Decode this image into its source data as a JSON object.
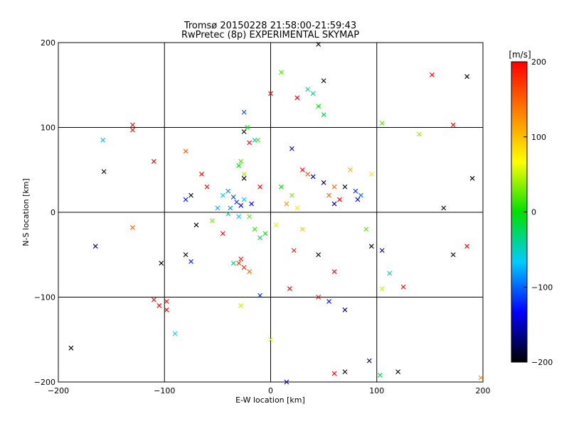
{
  "chart_data": {
    "type": "scatter",
    "title": "Tromsø 20150228 21:58:00-21:59:43",
    "subtitle": "RwPretec (8p) EXPERIMENTAL SKYMAP",
    "xlabel": "E-W location [km]",
    "ylabel": "N-S location [km]",
    "xlim": [
      -200,
      200
    ],
    "ylim": [
      -200,
      200
    ],
    "xticks": [
      -200,
      -100,
      0,
      100,
      200
    ],
    "yticks": [
      -200,
      -100,
      0,
      100,
      200
    ],
    "xticklabels": [
      "−200",
      "−100",
      "0",
      "100",
      "200"
    ],
    "yticklabels": [
      "−200",
      "−100",
      "0",
      "100",
      "200"
    ],
    "grid": true,
    "colorbar": {
      "label": "[m/s]",
      "vmin": -200,
      "vmax": 200,
      "ticks": [
        200,
        100,
        0,
        -100,
        -200
      ],
      "ticklabels": [
        "200",
        "100",
        "0",
        "−100",
        "−200"
      ],
      "colormap": [
        "#000000",
        "#0000ff",
        "#00ccff",
        "#00e000",
        "#ffff00",
        "#ff8000",
        "#ff0000"
      ]
    },
    "marker_legend": {
      "small_dot": "dot",
      "large_cross": "x"
    },
    "points": [
      {
        "x": -32,
        "y": 12,
        "v": -120,
        "m": "x"
      },
      {
        "x": -28,
        "y": 8,
        "v": -140,
        "m": "x"
      },
      {
        "x": -35,
        "y": 18,
        "v": -110,
        "m": "x"
      },
      {
        "x": -38,
        "y": 5,
        "v": -90,
        "m": "x"
      },
      {
        "x": -25,
        "y": 15,
        "v": -60,
        "m": "x"
      },
      {
        "x": -40,
        "y": -2,
        "v": -30,
        "m": "x"
      },
      {
        "x": -20,
        "y": -5,
        "v": 20,
        "m": "x"
      },
      {
        "x": -15,
        "y": -20,
        "v": 10,
        "m": "x"
      },
      {
        "x": -10,
        "y": -30,
        "v": -20,
        "m": "x"
      },
      {
        "x": -5,
        "y": -25,
        "v": 0,
        "m": "x"
      },
      {
        "x": 5,
        "y": -15,
        "v": 60,
        "m": "x"
      },
      {
        "x": -30,
        "y": -60,
        "v": 170,
        "m": "x"
      },
      {
        "x": -25,
        "y": -65,
        "v": 180,
        "m": "x"
      },
      {
        "x": -20,
        "y": -70,
        "v": 150,
        "m": "x"
      },
      {
        "x": -28,
        "y": -55,
        "v": 190,
        "m": "x"
      },
      {
        "x": -45,
        "y": -25,
        "v": 200,
        "m": "x"
      },
      {
        "x": -55,
        "y": -10,
        "v": 30,
        "m": "x"
      },
      {
        "x": 10,
        "y": 30,
        "v": 0,
        "m": "x"
      },
      {
        "x": 20,
        "y": 20,
        "v": 30,
        "m": "x"
      },
      {
        "x": 25,
        "y": 5,
        "v": 80,
        "m": "x"
      },
      {
        "x": 30,
        "y": -20,
        "v": 100,
        "m": "x"
      },
      {
        "x": 15,
        "y": 10,
        "v": 120,
        "m": "x"
      },
      {
        "x": 22,
        "y": -45,
        "v": 190,
        "m": "x"
      },
      {
        "x": 35,
        "y": 45,
        "v": 160,
        "m": "x"
      },
      {
        "x": 40,
        "y": 42,
        "v": -150,
        "m": "x"
      },
      {
        "x": 50,
        "y": 35,
        "v": -180,
        "m": "x"
      },
      {
        "x": 55,
        "y": 20,
        "v": 150,
        "m": "x"
      },
      {
        "x": 60,
        "y": 10,
        "v": -160,
        "m": "x"
      },
      {
        "x": 70,
        "y": 30,
        "v": -200,
        "m": "x"
      },
      {
        "x": 80,
        "y": 25,
        "v": -120,
        "m": "x"
      },
      {
        "x": 85,
        "y": 20,
        "v": -100,
        "m": "x"
      },
      {
        "x": 82,
        "y": 15,
        "v": -130,
        "m": "x"
      },
      {
        "x": 90,
        "y": -20,
        "v": 20,
        "m": "x"
      },
      {
        "x": 95,
        "y": -40,
        "v": -200,
        "m": "x"
      },
      {
        "x": 75,
        "y": 50,
        "v": 110,
        "m": "x"
      },
      {
        "x": 95,
        "y": 45,
        "v": 80,
        "m": "x"
      },
      {
        "x": 10,
        "y": 165,
        "v": 20,
        "m": "x"
      },
      {
        "x": 25,
        "y": 135,
        "v": 200,
        "m": "x"
      },
      {
        "x": 35,
        "y": 145,
        "v": -40,
        "m": "x"
      },
      {
        "x": 40,
        "y": 140,
        "v": -40,
        "m": "x"
      },
      {
        "x": 45,
        "y": 125,
        "v": 0,
        "m": "x"
      },
      {
        "x": 50,
        "y": 115,
        "v": -20,
        "m": "x"
      },
      {
        "x": 50,
        "y": 155,
        "v": -200,
        "m": "x"
      },
      {
        "x": 45,
        "y": 198,
        "v": -200,
        "m": "x"
      },
      {
        "x": 0,
        "y": 140,
        "v": 200,
        "m": "x"
      },
      {
        "x": -25,
        "y": 118,
        "v": -110,
        "m": "x"
      },
      {
        "x": -25,
        "y": 95,
        "v": -200,
        "m": "x"
      },
      {
        "x": -22,
        "y": 100,
        "v": 0,
        "m": "x"
      },
      {
        "x": -15,
        "y": 85,
        "v": -50,
        "m": "x"
      },
      {
        "x": -12,
        "y": 85,
        "v": 20,
        "m": "x"
      },
      {
        "x": -20,
        "y": 82,
        "v": 200,
        "m": "x"
      },
      {
        "x": -28,
        "y": 60,
        "v": 20,
        "m": "x"
      },
      {
        "x": -25,
        "y": 45,
        "v": 40,
        "m": "x"
      },
      {
        "x": -25,
        "y": 40,
        "v": -200,
        "m": "x"
      },
      {
        "x": -30,
        "y": 55,
        "v": 0,
        "m": "x"
      },
      {
        "x": -10,
        "y": 30,
        "v": 200,
        "m": "x"
      },
      {
        "x": 20,
        "y": 75,
        "v": -150,
        "m": "x"
      },
      {
        "x": 30,
        "y": 50,
        "v": 200,
        "m": "x"
      },
      {
        "x": 60,
        "y": 30,
        "v": 150,
        "m": "x"
      },
      {
        "x": 65,
        "y": 15,
        "v": 200,
        "m": "x"
      },
      {
        "x": -60,
        "y": 30,
        "v": 200,
        "m": "x"
      },
      {
        "x": -65,
        "y": 45,
        "v": 200,
        "m": "x"
      },
      {
        "x": -75,
        "y": 20,
        "v": -200,
        "m": "x"
      },
      {
        "x": -80,
        "y": 15,
        "v": -120,
        "m": "x"
      },
      {
        "x": -70,
        "y": -15,
        "v": -200,
        "m": "x"
      },
      {
        "x": -80,
        "y": 72,
        "v": 160,
        "m": "x"
      },
      {
        "x": -110,
        "y": 60,
        "v": 200,
        "m": "x"
      },
      {
        "x": -130,
        "y": 103,
        "v": 200,
        "m": "x"
      },
      {
        "x": -130,
        "y": 97,
        "v": 200,
        "m": "x"
      },
      {
        "x": -158,
        "y": 85,
        "v": -70,
        "m": "x"
      },
      {
        "x": -157,
        "y": 48,
        "v": -200,
        "m": "x"
      },
      {
        "x": -130,
        "y": -18,
        "v": 150,
        "m": "x"
      },
      {
        "x": -165,
        "y": -40,
        "v": -170,
        "m": "x"
      },
      {
        "x": -103,
        "y": -60,
        "v": -200,
        "m": "x"
      },
      {
        "x": -80,
        "y": -50,
        "v": -200,
        "m": "x"
      },
      {
        "x": -75,
        "y": -58,
        "v": -120,
        "m": "x"
      },
      {
        "x": -110,
        "y": -103,
        "v": 200,
        "m": "x"
      },
      {
        "x": -105,
        "y": -110,
        "v": 200,
        "m": "x"
      },
      {
        "x": -98,
        "y": -105,
        "v": 200,
        "m": "x"
      },
      {
        "x": -98,
        "y": -115,
        "v": 200,
        "m": "x"
      },
      {
        "x": -90,
        "y": -143,
        "v": -60,
        "m": "x"
      },
      {
        "x": -188,
        "y": -160,
        "v": -200,
        "m": "x"
      },
      {
        "x": -28,
        "y": -110,
        "v": 50,
        "m": "x"
      },
      {
        "x": -10,
        "y": -98,
        "v": -120,
        "m": "x"
      },
      {
        "x": 0,
        "y": -150,
        "v": 60,
        "m": "x"
      },
      {
        "x": 15,
        "y": -200,
        "v": -140,
        "m": "x"
      },
      {
        "x": 18,
        "y": -90,
        "v": 200,
        "m": "x"
      },
      {
        "x": 45,
        "y": -100,
        "v": 200,
        "m": "x"
      },
      {
        "x": 55,
        "y": -105,
        "v": -130,
        "m": "x"
      },
      {
        "x": 70,
        "y": -115,
        "v": -160,
        "m": "x"
      },
      {
        "x": 60,
        "y": -190,
        "v": 200,
        "m": "x"
      },
      {
        "x": 70,
        "y": -188,
        "v": -200,
        "m": "x"
      },
      {
        "x": 93,
        "y": -175,
        "v": -180,
        "m": "x"
      },
      {
        "x": 103,
        "y": -192,
        "v": -20,
        "m": "x"
      },
      {
        "x": 120,
        "y": -188,
        "v": -200,
        "m": "x"
      },
      {
        "x": 105,
        "y": -45,
        "v": -160,
        "m": "x"
      },
      {
        "x": 112,
        "y": -72,
        "v": -50,
        "m": "x"
      },
      {
        "x": 125,
        "y": -88,
        "v": 200,
        "m": "x"
      },
      {
        "x": 105,
        "y": -90,
        "v": 50,
        "m": "x"
      },
      {
        "x": 105,
        "y": 105,
        "v": 20,
        "m": "x"
      },
      {
        "x": 140,
        "y": 92,
        "v": 40,
        "m": "x"
      },
      {
        "x": 152,
        "y": 162,
        "v": 200,
        "m": "x"
      },
      {
        "x": 185,
        "y": 160,
        "v": -200,
        "m": "x"
      },
      {
        "x": 163,
        "y": 5,
        "v": -200,
        "m": "x"
      },
      {
        "x": 185,
        "y": -40,
        "v": 200,
        "m": "x"
      },
      {
        "x": 172,
        "y": -50,
        "v": -200,
        "m": "x"
      },
      {
        "x": 198,
        "y": -195,
        "v": 130,
        "m": "x"
      },
      {
        "x": 190,
        "y": 40,
        "v": -200,
        "m": "x"
      },
      {
        "x": 172,
        "y": 103,
        "v": 200,
        "m": "x"
      },
      {
        "x": 45,
        "y": -50,
        "v": -200,
        "m": "x"
      },
      {
        "x": 60,
        "y": -70,
        "v": 200,
        "m": "x"
      },
      {
        "x": -45,
        "y": 20,
        "v": -60,
        "m": "x"
      },
      {
        "x": -50,
        "y": 5,
        "v": -80,
        "m": "x"
      },
      {
        "x": -40,
        "y": 25,
        "v": -90,
        "m": "x"
      },
      {
        "x": -18,
        "y": 10,
        "v": -130,
        "m": "x"
      },
      {
        "x": -30,
        "y": -5,
        "v": -70,
        "m": "x"
      },
      {
        "x": -35,
        "y": -60,
        "v": -30,
        "m": "x"
      }
    ]
  }
}
